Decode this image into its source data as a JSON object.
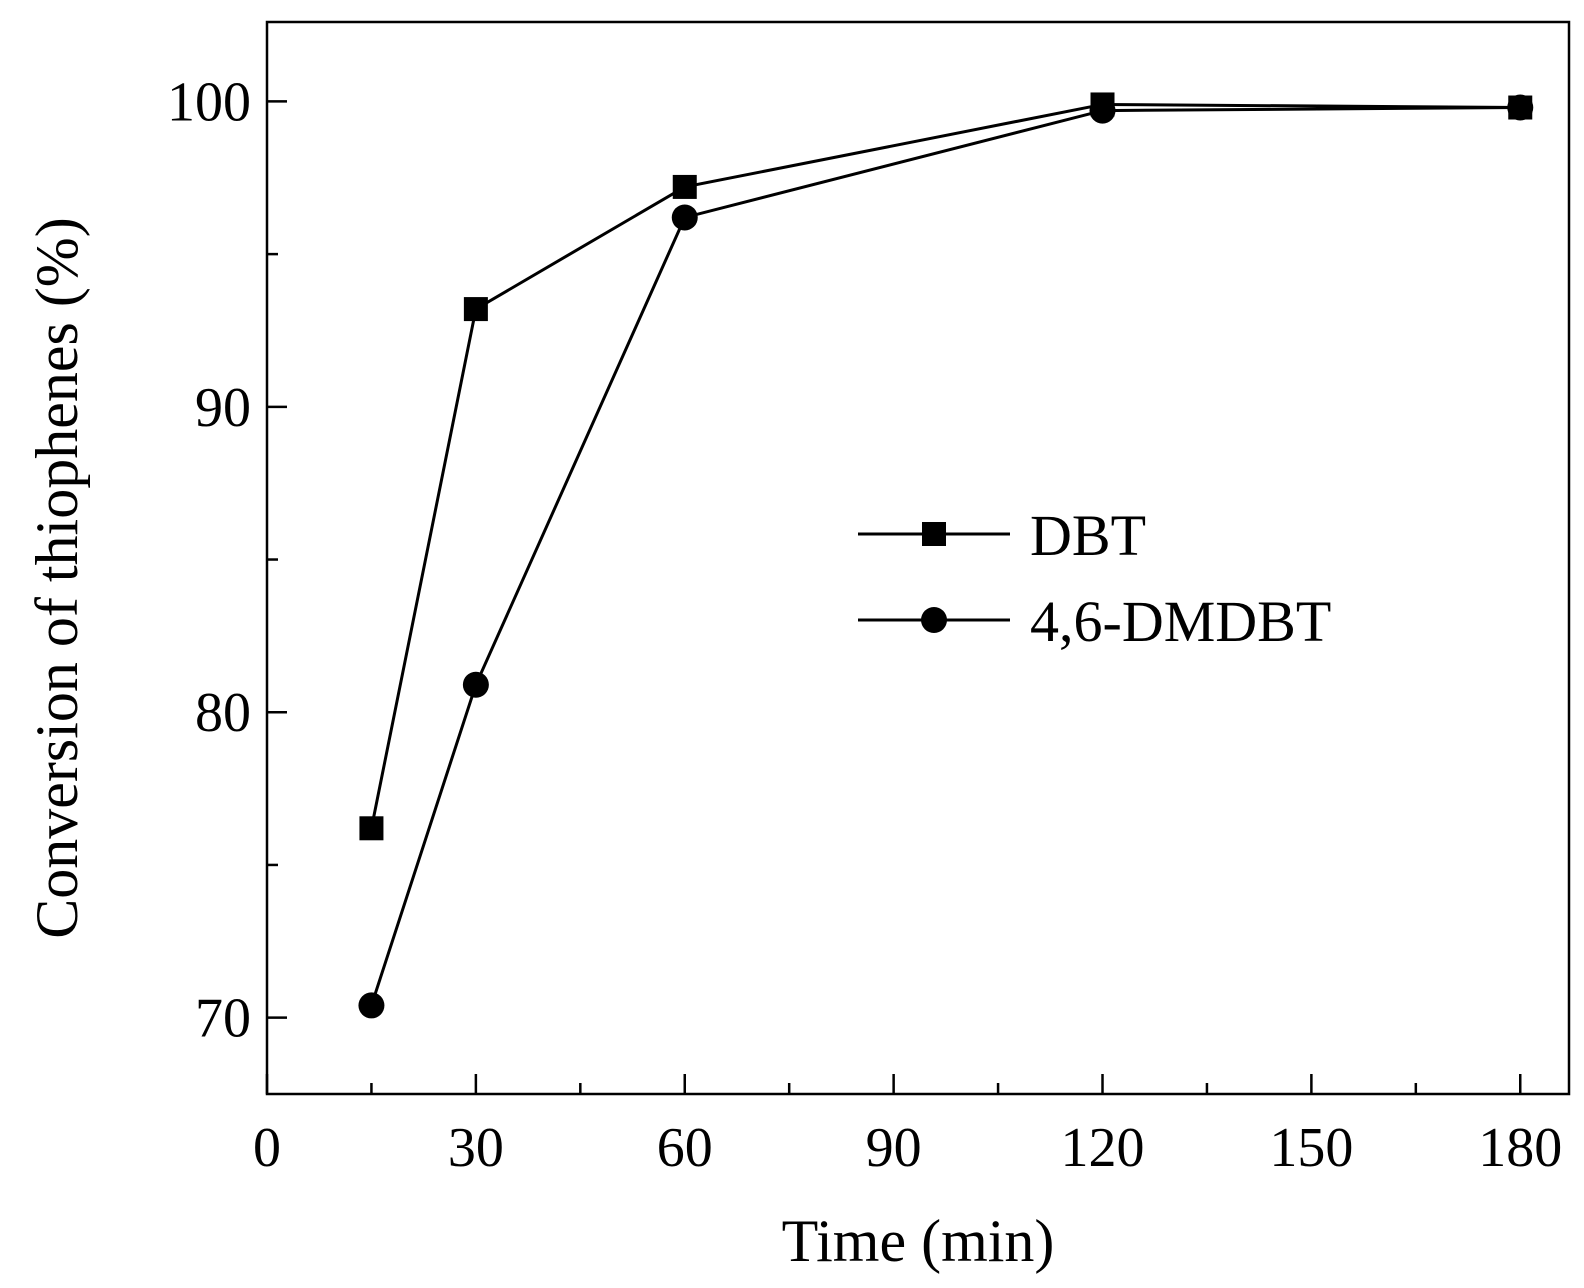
{
  "chart_data": {
    "type": "line",
    "title": "",
    "xlabel": "Time (min)",
    "ylabel": "Conversion of thiophenes (%)",
    "xlim": [
      0,
      187
    ],
    "ylim": [
      67.5,
      102.6
    ],
    "xticks": [
      0,
      30,
      60,
      90,
      120,
      150,
      180
    ],
    "xminor": [
      15,
      45,
      75,
      105,
      135,
      165
    ],
    "yticks": [
      70,
      80,
      90,
      100
    ],
    "yminor": [
      75,
      85,
      95
    ],
    "grid": false,
    "legend_position": "center-right",
    "series": [
      {
        "name": "DBT",
        "marker": "square",
        "x": [
          15,
          30,
          60,
          120,
          180
        ],
        "values": [
          76.2,
          93.2,
          97.2,
          99.9,
          99.8
        ]
      },
      {
        "name": "4,6-DMDBT",
        "marker": "circle",
        "x": [
          15,
          30,
          60,
          120,
          180
        ],
        "values": [
          70.4,
          80.9,
          96.2,
          99.7,
          99.8
        ]
      }
    ]
  }
}
